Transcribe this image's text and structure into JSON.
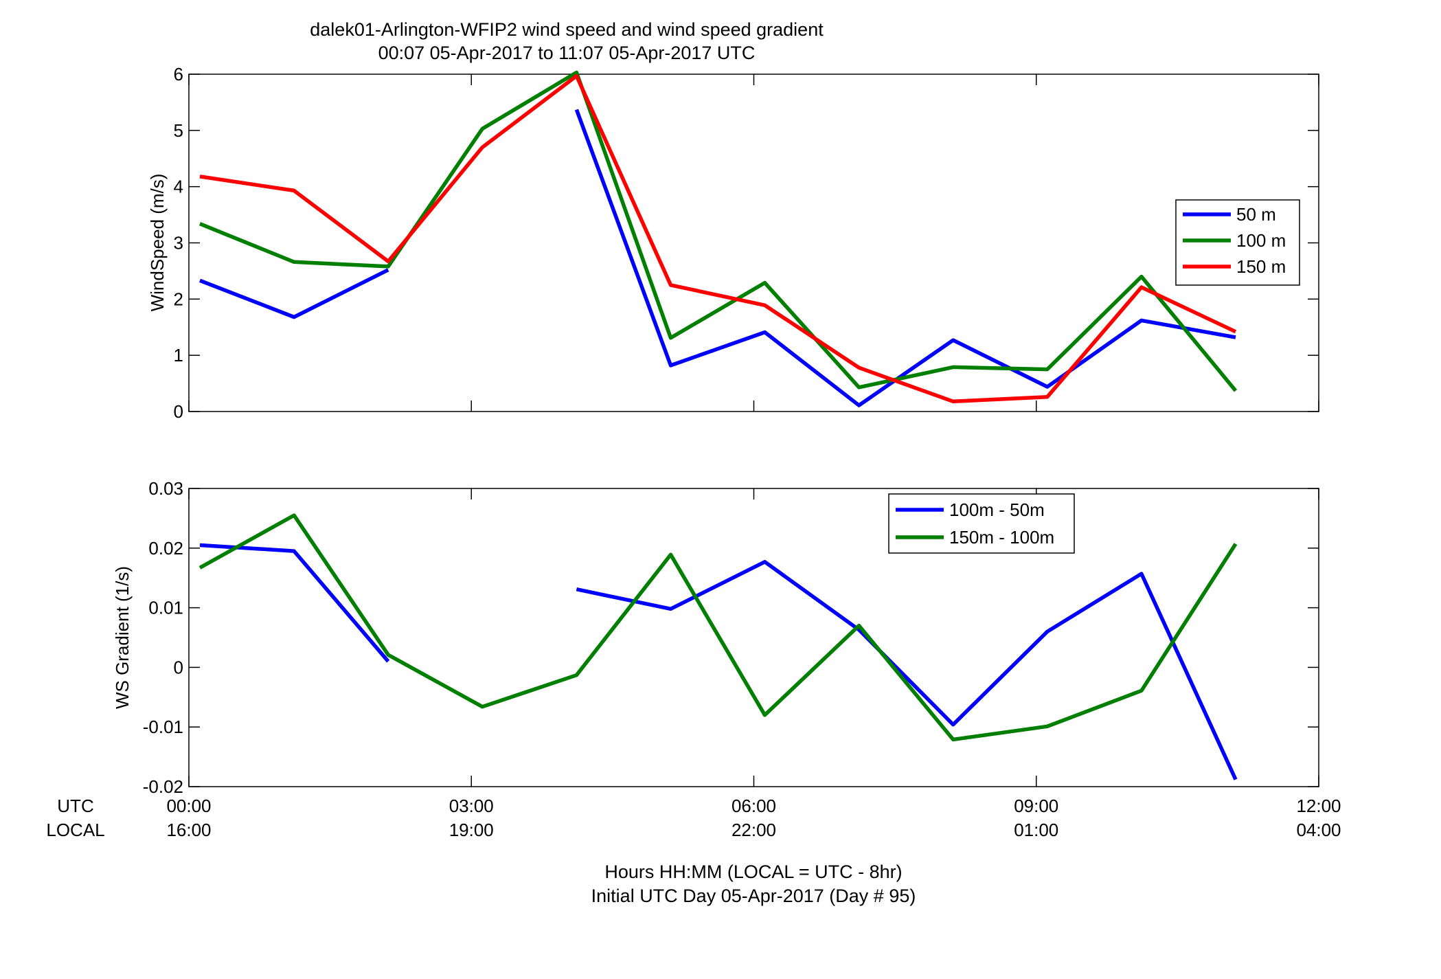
{
  "title": {
    "line1": "dalek01-Arlington-WFIP2  wind speed and wind speed gradient",
    "line2": "00:07 05-Apr-2017 to 11:07 05-Apr-2017  UTC"
  },
  "x_axis": {
    "row_labels": [
      "UTC",
      "LOCAL"
    ],
    "utc_ticks": [
      "00:00",
      "03:00",
      "06:00",
      "09:00",
      "12:00"
    ],
    "local_ticks": [
      "16:00",
      "19:00",
      "22:00",
      "01:00",
      "04:00"
    ],
    "tick_hours": [
      0,
      3,
      6,
      9,
      12
    ],
    "xlabel_line1": "Hours HH:MM  (LOCAL = UTC - 8hr)",
    "xlabel_line2": "Initial UTC Day 05-Apr-2017 (Day # 95)",
    "xlim_hours": [
      0,
      12
    ]
  },
  "chart_data": [
    {
      "type": "line",
      "title": "",
      "ylabel": "WindSpeed (m/s)",
      "xlim_hours": [
        0,
        12
      ],
      "ylim": [
        0,
        6
      ],
      "yticks": [
        0,
        1,
        2,
        3,
        4,
        5,
        6
      ],
      "ytick_labels": [
        "0",
        "1",
        "2",
        "3",
        "4",
        "5",
        "6"
      ],
      "grid": false,
      "legend_position": "right",
      "series": [
        {
          "name": "50 m",
          "color": "#0000FF",
          "x_hours": [
            0.117,
            1.117,
            2.117,
            3.117,
            4.117,
            5.117,
            6.117,
            7.117,
            8.117,
            9.117,
            10.117,
            11.117
          ],
          "values": [
            2.33,
            1.68,
            2.52,
            null,
            5.37,
            0.82,
            1.41,
            0.11,
            1.27,
            0.44,
            1.62,
            1.32
          ]
        },
        {
          "name": "100 m",
          "color": "#007F00",
          "x_hours": [
            0.117,
            1.117,
            2.117,
            3.117,
            4.117,
            5.117,
            6.117,
            7.117,
            8.117,
            9.117,
            10.117,
            11.117
          ],
          "values": [
            3.34,
            2.66,
            2.58,
            5.03,
            6.03,
            1.31,
            2.29,
            0.43,
            0.79,
            0.75,
            2.4,
            0.37
          ]
        },
        {
          "name": "150 m",
          "color": "#FF0000",
          "x_hours": [
            0.117,
            1.117,
            2.117,
            3.117,
            4.117,
            5.117,
            6.117,
            7.117,
            8.117,
            9.117,
            10.117,
            11.117
          ],
          "values": [
            4.18,
            3.93,
            2.67,
            4.7,
            5.97,
            2.25,
            1.89,
            0.78,
            0.18,
            0.26,
            2.21,
            1.42
          ]
        }
      ]
    },
    {
      "type": "line",
      "title": "",
      "ylabel": "WS Gradient (1/s)",
      "xlim_hours": [
        0,
        12
      ],
      "ylim": [
        -0.02,
        0.03
      ],
      "yticks": [
        -0.02,
        -0.01,
        0,
        0.01,
        0.02,
        0.03
      ],
      "ytick_labels": [
        "-0.02",
        "-0.01",
        "0",
        "0.01",
        "0.02",
        "0.03"
      ],
      "grid": false,
      "legend_position": "top-right",
      "series": [
        {
          "name": "100m - 50m",
          "color": "#0000FF",
          "x_hours": [
            0.117,
            1.117,
            2.117,
            3.117,
            4.117,
            5.117,
            6.117,
            7.117,
            8.117,
            9.117,
            10.117,
            11.117
          ],
          "values": [
            0.0205,
            0.0195,
            0.001,
            null,
            0.0131,
            0.0098,
            0.0177,
            0.0063,
            -0.0096,
            0.006,
            0.0157,
            -0.0188
          ]
        },
        {
          "name": "150m - 100m",
          "color": "#007F00",
          "x_hours": [
            0.117,
            1.117,
            2.117,
            3.117,
            4.117,
            5.117,
            6.117,
            7.117,
            8.117,
            9.117,
            10.117,
            11.117
          ],
          "values": [
            0.0167,
            0.0255,
            0.0021,
            -0.0066,
            -0.0013,
            0.0189,
            -0.008,
            0.007,
            -0.0121,
            -0.0099,
            -0.0039,
            0.0207
          ]
        }
      ]
    }
  ]
}
